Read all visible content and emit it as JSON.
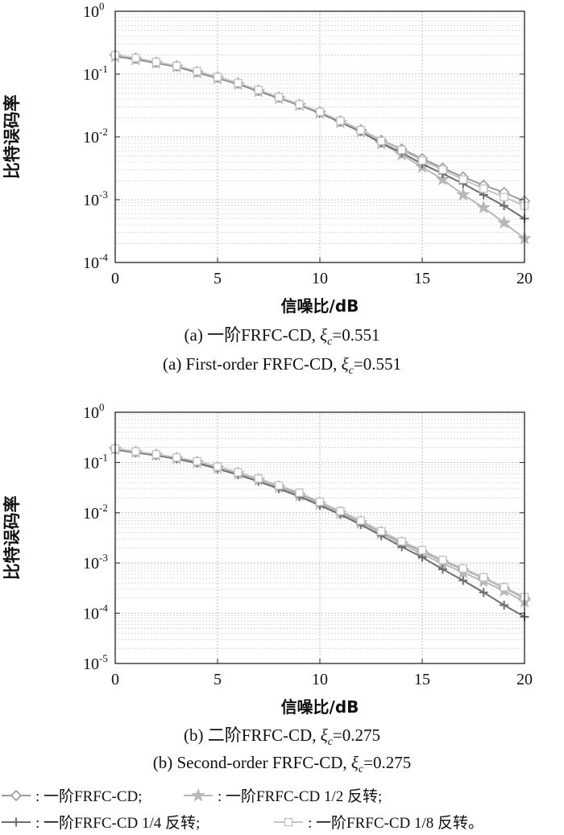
{
  "figure": {
    "colors": {
      "order1": "#9a9a9a",
      "half": "#b8b8b8",
      "quarter": "#6e6e6e",
      "eighth": "#c4c4c4",
      "grid": "#cfcfcf"
    },
    "legend": [
      {
        "key": "order1",
        "marker": "diamond",
        "label": "一阶FRFC-CD;"
      },
      {
        "key": "half",
        "marker": "star",
        "label": "一阶FRFC-CD 1/2 反转;"
      },
      {
        "key": "quarter",
        "marker": "plus",
        "label": "一阶FRFC-CD 1/4 反转;"
      },
      {
        "key": "eighth",
        "marker": "square",
        "label": "一阶FRFC-CD 1/8 反转。"
      }
    ]
  },
  "chart_data": [
    {
      "type": "line",
      "title": "",
      "caption_cn": {
        "prefix": "(a) 一阶FRFC-CD, ",
        "symbol": "ξ",
        "sub": "c",
        "suffix": "=0.551"
      },
      "caption_en": {
        "prefix": "(a) First-order FRFC-CD, ",
        "symbol": "ξ",
        "sub": "c",
        "suffix": "=0.551"
      },
      "xlabel": "信噪比/dB",
      "ylabel": "比特误码率",
      "xlim": [
        0,
        20
      ],
      "xticks": [
        "0",
        "5",
        "10",
        "15",
        "20"
      ],
      "ylim": [
        0.0001,
        1
      ],
      "yscale": "log",
      "yticks": [
        {
          "base": "10",
          "exp": "0"
        },
        {
          "base": "10",
          "exp": "-1"
        },
        {
          "base": "10",
          "exp": "-2"
        },
        {
          "base": "10",
          "exp": "-3"
        },
        {
          "base": "10",
          "exp": "-4"
        }
      ],
      "grid": true,
      "x": [
        0,
        1,
        2,
        3,
        4,
        5,
        6,
        7,
        8,
        9,
        10,
        11,
        12,
        13,
        14,
        15,
        16,
        17,
        18,
        19,
        20
      ],
      "series": [
        {
          "key": "order1",
          "marker": "diamond",
          "values": [
            0.2,
            0.18,
            0.155,
            0.135,
            0.11,
            0.09,
            0.072,
            0.055,
            0.043,
            0.033,
            0.025,
            0.018,
            0.013,
            0.0088,
            0.0064,
            0.0045,
            0.0032,
            0.0023,
            0.0017,
            0.0013,
            0.00095
          ]
        },
        {
          "key": "half",
          "marker": "star",
          "values": [
            0.19,
            0.17,
            0.15,
            0.13,
            0.105,
            0.085,
            0.069,
            0.053,
            0.041,
            0.032,
            0.024,
            0.017,
            0.012,
            0.0078,
            0.0052,
            0.0033,
            0.0021,
            0.0012,
            0.00075,
            0.00043,
            0.00024
          ]
        },
        {
          "key": "quarter",
          "marker": "plus",
          "values": [
            0.195,
            0.175,
            0.152,
            0.132,
            0.108,
            0.088,
            0.07,
            0.054,
            0.042,
            0.032,
            0.024,
            0.0172,
            0.0122,
            0.008,
            0.0056,
            0.0037,
            0.0026,
            0.0018,
            0.0012,
            0.0008,
            0.0005
          ]
        },
        {
          "key": "eighth",
          "marker": "square",
          "values": [
            0.2,
            0.18,
            0.156,
            0.135,
            0.111,
            0.09,
            0.072,
            0.056,
            0.043,
            0.033,
            0.025,
            0.018,
            0.0128,
            0.0086,
            0.0062,
            0.0042,
            0.003,
            0.0021,
            0.0015,
            0.0011,
            0.0008
          ]
        }
      ]
    },
    {
      "type": "line",
      "title": "",
      "caption_cn": {
        "prefix": "(b) 二阶FRFC-CD, ",
        "symbol": "ξ",
        "sub": "c",
        "suffix": "=0.275"
      },
      "caption_en": {
        "prefix": "(b) Second-order FRFC-CD, ",
        "symbol": "ξ",
        "sub": "c",
        "suffix": "=0.275"
      },
      "xlabel": "信噪比/dB",
      "ylabel": "比特误码率",
      "xlim": [
        0,
        20
      ],
      "xticks": [
        "0",
        "5",
        "10",
        "15",
        "20"
      ],
      "ylim": [
        1e-05,
        1
      ],
      "yscale": "log",
      "yticks": [
        {
          "base": "10",
          "exp": "0"
        },
        {
          "base": "10",
          "exp": "-1"
        },
        {
          "base": "10",
          "exp": "-2"
        },
        {
          "base": "10",
          "exp": "-3"
        },
        {
          "base": "10",
          "exp": "-4"
        },
        {
          "base": "10",
          "exp": "-5"
        }
      ],
      "grid": true,
      "x": [
        0,
        1,
        2,
        3,
        4,
        5,
        6,
        7,
        8,
        9,
        10,
        11,
        12,
        13,
        14,
        15,
        16,
        17,
        18,
        19,
        20
      ],
      "series": [
        {
          "key": "order1",
          "marker": "diamond",
          "values": [
            0.19,
            0.165,
            0.145,
            0.125,
            0.105,
            0.082,
            0.063,
            0.047,
            0.034,
            0.024,
            0.016,
            0.0105,
            0.0068,
            0.0042,
            0.0026,
            0.0017,
            0.0011,
            0.00075,
            0.0005,
            0.00032,
            0.0002
          ]
        },
        {
          "key": "half",
          "marker": "star",
          "values": [
            0.185,
            0.16,
            0.14,
            0.12,
            0.1,
            0.078,
            0.06,
            0.045,
            0.032,
            0.022,
            0.015,
            0.0098,
            0.0063,
            0.0039,
            0.0024,
            0.0015,
            0.00098,
            0.00065,
            0.00043,
            0.00028,
            0.00017
          ]
        },
        {
          "key": "quarter",
          "marker": "plus",
          "values": [
            0.18,
            0.158,
            0.138,
            0.118,
            0.097,
            0.075,
            0.057,
            0.042,
            0.03,
            0.021,
            0.014,
            0.0092,
            0.0058,
            0.0035,
            0.0021,
            0.0013,
            0.00075,
            0.00045,
            0.00026,
            0.000145,
            8.5e-05
          ]
        },
        {
          "key": "eighth",
          "marker": "square",
          "values": [
            0.19,
            0.166,
            0.146,
            0.126,
            0.106,
            0.083,
            0.064,
            0.048,
            0.035,
            0.025,
            0.0165,
            0.0108,
            0.007,
            0.0043,
            0.0027,
            0.0018,
            0.00115,
            0.00078,
            0.00052,
            0.00033,
            0.00021
          ]
        }
      ]
    }
  ]
}
